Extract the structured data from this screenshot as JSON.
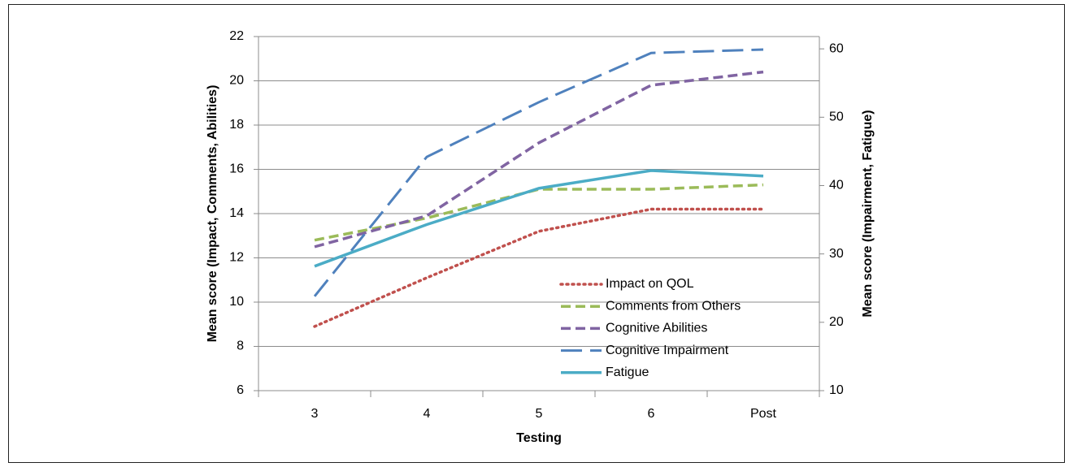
{
  "chart_data": {
    "type": "line",
    "x_label": "Testing",
    "y_label": "Mean score (Impact, Comments, Abilities)",
    "y2_label": "Mean score (Impairment, Fatigue)",
    "categories": [
      "3",
      "4",
      "5",
      "6",
      "Post"
    ],
    "ylim": [
      6,
      22
    ],
    "yticks": [
      6,
      8,
      10,
      12,
      14,
      16,
      18,
      20,
      22
    ],
    "y2lim": [
      10,
      61.8
    ],
    "y2ticks": [
      10,
      20,
      30,
      40,
      50,
      60
    ],
    "grid": true,
    "legend": "lower-right",
    "series": [
      {
        "name": "Impact on QOL",
        "color": "#c0504d",
        "linestyle": "dotted",
        "values": [
          8.9,
          11.1,
          13.2,
          14.2,
          14.2
        ]
      },
      {
        "name": "Comments from Others",
        "color": "#9bbb59",
        "linestyle": "dashed",
        "values": [
          12.8,
          13.8,
          15.1,
          15.1,
          15.3
        ]
      },
      {
        "name": "Cognitive Abilities",
        "color": "#8064a2",
        "linestyle": "dashed",
        "values": [
          12.5,
          13.9,
          17.2,
          19.8,
          20.4
        ]
      },
      {
        "name": "Cognitive Impairment",
        "color": "#4f81bd",
        "linestyle": "long-dashed",
        "axis": "y2",
        "values": [
          23.8,
          44.2,
          52.2,
          59.4,
          59.9
        ]
      },
      {
        "name": "Fatigue",
        "color": "#4bacc6",
        "linestyle": "solid",
        "axis": "y2",
        "values": [
          28.2,
          34.3,
          39.6,
          42.2,
          41.4
        ]
      }
    ]
  }
}
